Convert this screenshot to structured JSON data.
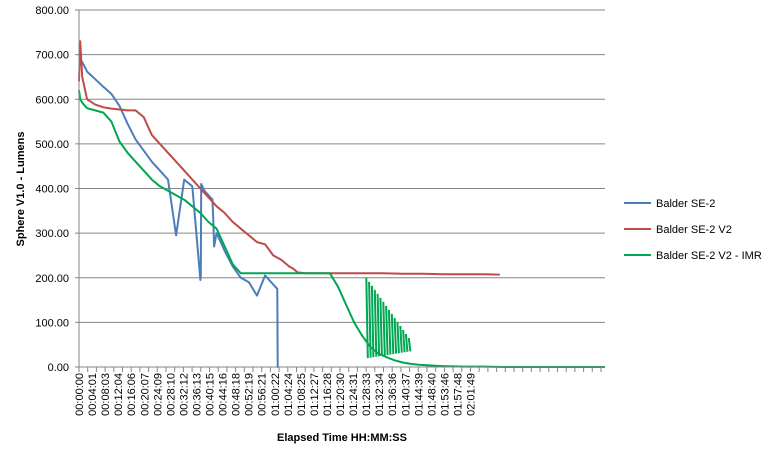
{
  "chart_data": {
    "type": "line",
    "title": "",
    "xlabel": "Elapsed Time HH:MM:SS",
    "ylabel": "Sphere V1.0 - Lumens",
    "ylim": [
      0,
      800
    ],
    "yticks": [
      "0.00",
      "100.00",
      "200.00",
      "300.00",
      "400.00",
      "500.00",
      "600.00",
      "700.00",
      "800.00"
    ],
    "xlim_minutes": [
      0,
      130
    ],
    "x_tick_labels": [
      "00:00:00",
      "00:04:01",
      "00:08:03",
      "00:12:04",
      "00:16:06",
      "00:20:07",
      "00:24:09",
      "00:28:10",
      "00:32:12",
      "00:36:13",
      "00:40:15",
      "00:44:16",
      "00:48:18",
      "00:52:19",
      "00:56:21",
      "01:00:22",
      "01:04:24",
      "01:08:25",
      "01:12:27",
      "01:16:28",
      "01:20:30",
      "01:24:31",
      "01:28:33",
      "01:32:34",
      "01:36:36",
      "01:40:37",
      "01:44:39",
      "01:48:40",
      "01:53:46",
      "01:57:48",
      "02:01:49"
    ],
    "grid": true,
    "legend_position": "right",
    "series": [
      {
        "name": "Balder SE-2",
        "color": "#4a7ebb",
        "x_minutes": [
          0,
          0.3,
          1,
          2,
          4,
          6,
          8,
          10,
          12,
          14,
          16,
          18,
          20,
          22,
          24,
          26,
          28,
          30,
          30.1,
          30.2,
          31,
          33,
          33.1,
          33.2,
          33.3,
          33.4,
          34,
          36,
          38,
          40,
          42,
          44,
          46,
          48,
          49,
          49.1,
          49.2
        ],
        "values": [
          700,
          690,
          680,
          662,
          645,
          628,
          612,
          585,
          545,
          510,
          485,
          460,
          440,
          420,
          295,
          420,
          405,
          195,
          205,
          410,
          395,
          375,
          350,
          330,
          300,
          270,
          300,
          260,
          225,
          200,
          190,
          160,
          205,
          185,
          175,
          0,
          0
        ]
      },
      {
        "name": "Balder SE-2 V2",
        "color": "#be4b48",
        "x_minutes": [
          0,
          0.3,
          0.8,
          2,
          4,
          6,
          8,
          10,
          12,
          14,
          16,
          18,
          20,
          22,
          24,
          26,
          28,
          30,
          32,
          34,
          36,
          38,
          40,
          42,
          44,
          46,
          48,
          50,
          52,
          53,
          54,
          56,
          58,
          60,
          62,
          64,
          66,
          68,
          70,
          75,
          80,
          85,
          90,
          95,
          100,
          104
        ],
        "values": [
          640,
          730,
          650,
          600,
          588,
          582,
          579,
          577,
          575,
          575,
          560,
          520,
          500,
          480,
          460,
          440,
          420,
          400,
          380,
          360,
          345,
          325,
          310,
          295,
          280,
          275,
          250,
          240,
          225,
          220,
          212,
          210,
          210,
          210,
          210,
          210,
          210,
          210,
          210,
          210,
          209,
          209,
          208,
          208,
          208,
          207
        ]
      },
      {
        "name": "Balder SE-2 V2 - IMR",
        "color": "#00a650",
        "x_minutes": [
          0,
          0.3,
          1,
          2,
          4,
          6,
          8,
          10,
          12,
          14,
          16,
          18,
          20,
          22,
          24,
          26,
          28,
          30,
          32,
          34,
          36,
          38,
          40,
          42,
          44,
          46,
          48,
          50,
          52,
          54,
          56,
          58,
          60,
          62,
          64,
          66,
          68,
          70,
          72,
          74,
          76,
          78,
          80,
          82,
          84,
          86,
          88,
          90,
          95,
          100,
          105,
          110,
          115,
          120,
          125,
          130
        ],
        "values": [
          620,
          600,
          590,
          580,
          575,
          570,
          550,
          505,
          480,
          460,
          440,
          420,
          405,
          395,
          385,
          375,
          360,
          345,
          325,
          310,
          270,
          230,
          210,
          210,
          210,
          210,
          210,
          210,
          210,
          210,
          210,
          210,
          210,
          210,
          180,
          140,
          100,
          70,
          45,
          30,
          22,
          15,
          10,
          7,
          5,
          4,
          3,
          2,
          1,
          1,
          0,
          0,
          0,
          0,
          0,
          0
        ]
      }
    ]
  }
}
